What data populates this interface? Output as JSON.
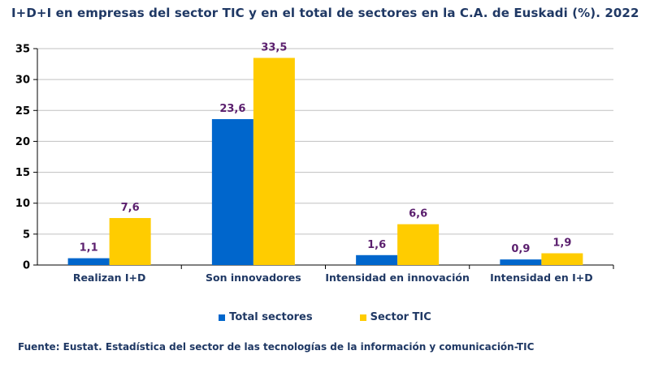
{
  "title": "I+D+I en empresas del sector TIC y en el total de sectores en la C.A. de Euskadi (%). 2022",
  "source": "Fuente: Eustat. Estadística del sector de las tecnologías de la información y comunicación-TIC",
  "colors": {
    "total": "#0066cc",
    "tic": "#ffcc00",
    "grid": "#c0c0c0",
    "data_label": "#5b1f6e"
  },
  "chart_data": {
    "type": "bar",
    "title": "I+D+I en empresas del sector TIC y en el total de sectores en la C.A. de Euskadi (%). 2022",
    "xlabel": "",
    "ylabel": "",
    "categories": [
      "Realizan I+D",
      "Son innovadores",
      "Intensidad en innovación",
      "Intensidad en I+D"
    ],
    "series": [
      {
        "name": "Total sectores",
        "values": [
          1.1,
          23.6,
          1.6,
          0.9
        ],
        "labels": [
          "1,1",
          "23,6",
          "1,6",
          "0,9"
        ]
      },
      {
        "name": "Sector TIC",
        "values": [
          7.6,
          33.5,
          6.6,
          1.9
        ],
        "labels": [
          "7,6",
          "33,5",
          "6,6",
          "1,9"
        ]
      }
    ],
    "ylim": [
      0,
      35
    ],
    "yticks": [
      0,
      5,
      10,
      15,
      20,
      25,
      30,
      35
    ],
    "grid": true,
    "legend": "bottom"
  }
}
